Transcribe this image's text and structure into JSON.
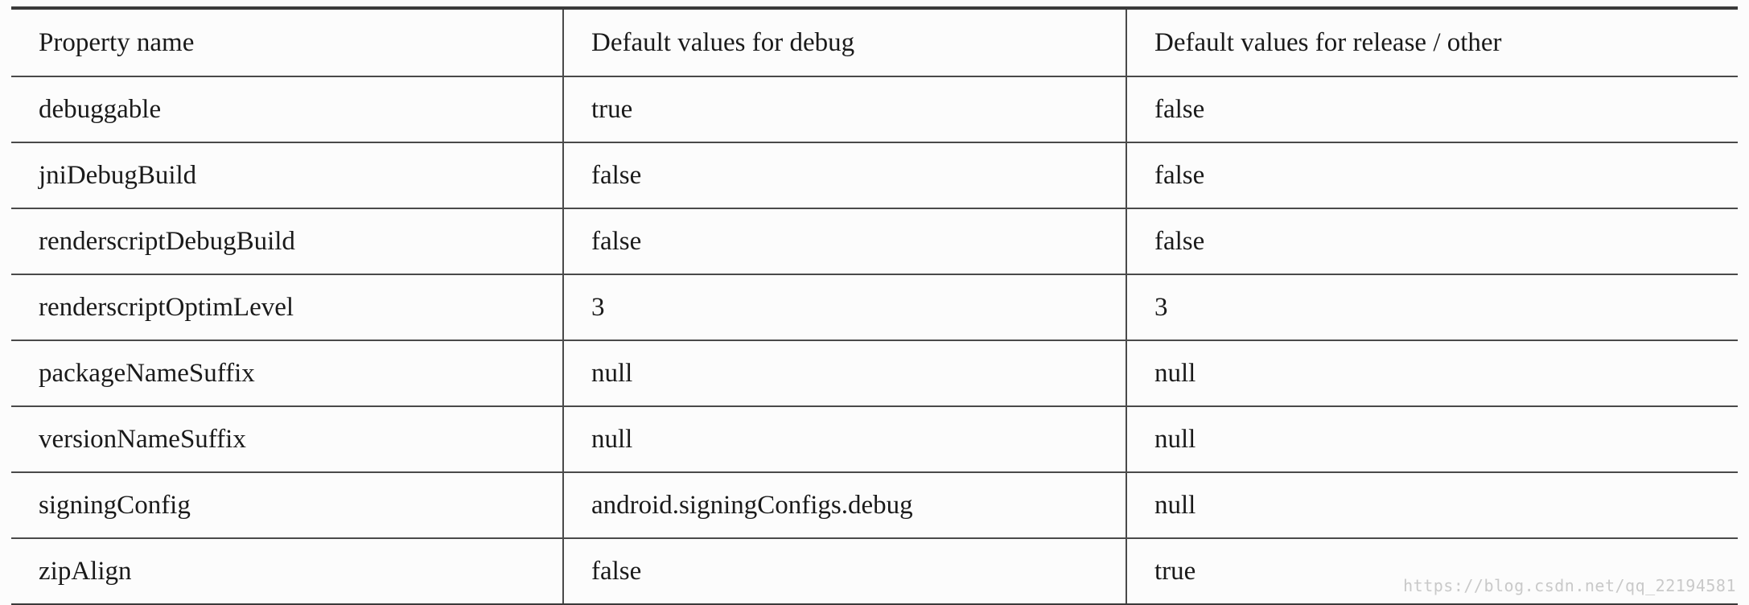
{
  "table": {
    "headers": [
      "Property name",
      "Default values for debug",
      "Default values for release / other"
    ],
    "rows": [
      [
        "debuggable",
        "true",
        "false"
      ],
      [
        "jniDebugBuild",
        "false",
        "false"
      ],
      [
        "renderscriptDebugBuild",
        "false",
        "false"
      ],
      [
        "renderscriptOptimLevel",
        "3",
        "3"
      ],
      [
        "packageNameSuffix",
        "null",
        "null"
      ],
      [
        "versionNameSuffix",
        "null",
        "null"
      ],
      [
        "signingConfig",
        "android.signingConfigs.debug",
        "null"
      ],
      [
        "zipAlign",
        "false",
        "true"
      ]
    ]
  },
  "watermark": "https://blog.csdn.net/qq_22194581"
}
